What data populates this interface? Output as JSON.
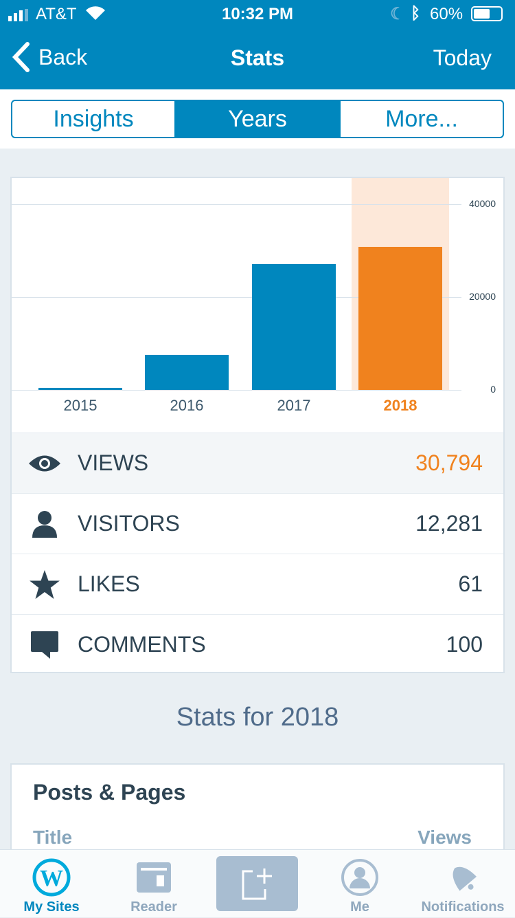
{
  "status": {
    "carrier": "AT&T",
    "time": "10:32 PM",
    "battery": "60%"
  },
  "nav": {
    "back": "Back",
    "title": "Stats",
    "right": "Today"
  },
  "segments": [
    "Insights",
    "Years",
    "More..."
  ],
  "colors": {
    "primary": "#0087be",
    "highlight": "#f0821e",
    "highlight_bg": "#fde8d9"
  },
  "chart_data": {
    "type": "bar",
    "categories": [
      "2015",
      "2016",
      "2017",
      "2018"
    ],
    "values": [
      400,
      7500,
      27100,
      30794
    ],
    "selected": "2018",
    "ylim": [
      0,
      45000
    ],
    "yticks": [
      "40000",
      "20000",
      "0"
    ],
    "ytick_values": [
      40000,
      20000,
      0
    ]
  },
  "stats": [
    {
      "label": "VIEWS",
      "value": "30,794",
      "icon": "eye-icon"
    },
    {
      "label": "VISITORS",
      "value": "12,281",
      "icon": "person-icon"
    },
    {
      "label": "LIKES",
      "value": "61",
      "icon": "star-icon"
    },
    {
      "label": "COMMENTS",
      "value": "100",
      "icon": "comment-icon"
    }
  ],
  "stats_for": "Stats for 2018",
  "posts": {
    "title": "Posts & Pages",
    "col_title": "Title",
    "col_views": "Views"
  },
  "tabs": [
    "My Sites",
    "Reader",
    "",
    "Me",
    "Notifications"
  ]
}
